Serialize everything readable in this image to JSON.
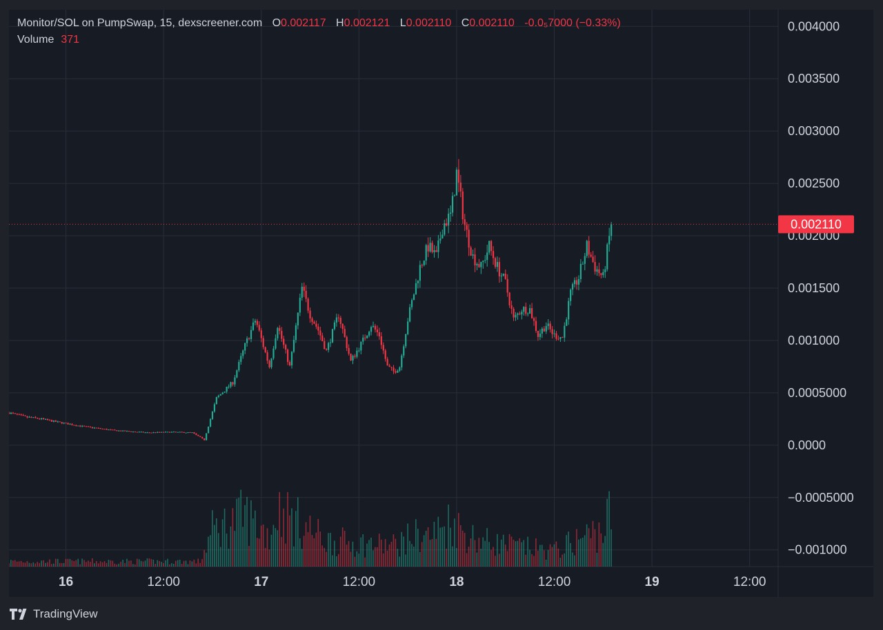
{
  "header": {
    "symbol_title": "Monitor/SOL on PumpSwap, 15, dexscreener.com",
    "open_label": "O",
    "open_value": "0.002117",
    "high_label": "H",
    "high_value": "0.002121",
    "low_label": "L",
    "low_value": "0.002110",
    "close_label": "C",
    "close_value": "0.002110",
    "change": "-0.0₅7000 (−0.33%)",
    "volume_label": "Volume",
    "volume_value": "371"
  },
  "colors": {
    "up": "#22ab94",
    "down": "#f23645",
    "grid": "#2a2e39",
    "text": "#d1d4dc",
    "background": "#171b24"
  },
  "footer": {
    "brand": "TradingView",
    "logo_icon": "tradingview-logo-icon"
  },
  "chart_data": {
    "type": "candlestick",
    "y_axis": {
      "ticks": [
        "0.004000",
        "0.003500",
        "0.003000",
        "0.002500",
        "0.002000",
        "0.001500",
        "0.001000",
        "0.0005000",
        "0.0000",
        "−0.0005000",
        "−0.001000"
      ],
      "tick_values": [
        0.004,
        0.0035,
        0.003,
        0.0025,
        0.002,
        0.0015,
        0.001,
        0.0005,
        0,
        -0.0005,
        -0.001
      ],
      "ylim": [
        -0.00116,
        0.00416
      ],
      "grid": true
    },
    "x_axis": {
      "labels": [
        "16",
        "12:00",
        "17",
        "12:00",
        "18",
        "12:00",
        "19",
        "12:00"
      ],
      "label_hours": [
        0,
        12,
        24,
        36,
        48,
        60,
        72,
        84
      ],
      "xlim_hours": [
        -7,
        87.5
      ]
    },
    "last_price": "0.002110",
    "last_price_value": 0.00211,
    "price_path_hours": [
      -7,
      -5,
      -3,
      -1,
      2,
      6,
      10,
      13,
      15.5,
      17,
      18.5,
      20.5,
      22,
      23.3,
      25,
      26,
      27.5,
      29,
      30,
      31,
      32,
      33.5,
      35,
      36.5,
      37.5,
      38.5,
      39.5,
      40.3,
      41,
      42,
      43.5,
      44.5,
      45.5,
      46.3,
      47.3,
      48,
      49,
      50,
      51,
      52,
      53,
      54,
      55,
      56,
      57,
      58,
      59,
      60,
      61,
      62,
      63,
      64,
      65,
      66,
      67
    ],
    "price_path_values": [
      0.00031,
      0.00027,
      0.00025,
      0.00022,
      0.00018,
      0.00014,
      0.00012,
      0.000125,
      0.00012,
      5e-05,
      0.00045,
      0.0006,
      0.00095,
      0.0012,
      0.00075,
      0.00115,
      0.00075,
      0.0015,
      0.00125,
      0.0011,
      0.0009,
      0.00125,
      0.0008,
      0.001,
      0.00115,
      0.00105,
      0.00075,
      0.0007,
      0.00075,
      0.0012,
      0.0017,
      0.0019,
      0.0018,
      0.0021,
      0.0022,
      0.0026,
      0.0021,
      0.0018,
      0.0017,
      0.0019,
      0.0017,
      0.00155,
      0.0012,
      0.0013,
      0.0013,
      0.00105,
      0.00115,
      0.00105,
      0.00103,
      0.00145,
      0.0016,
      0.0019,
      0.0017,
      0.0016,
      0.00211
    ],
    "volume_path_hours": [
      -7,
      16.5,
      18,
      21,
      22,
      25,
      26,
      32,
      40,
      43,
      45,
      47.5,
      48.5,
      49.5,
      51,
      55,
      60,
      64,
      66,
      67
    ],
    "volume_path_levels": [
      0.05,
      0.05,
      0.35,
      0.45,
      0.5,
      0.3,
      0.55,
      0.25,
      0.2,
      0.3,
      0.3,
      0.45,
      0.35,
      0.3,
      0.25,
      0.2,
      0.15,
      0.3,
      0.35,
      0.55
    ]
  }
}
